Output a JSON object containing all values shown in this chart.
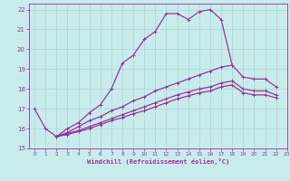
{
  "xlabel": "Windchill (Refroidissement éolien,°C)",
  "xlim": [
    -0.5,
    23
  ],
  "ylim": [
    15,
    22.3
  ],
  "xticks": [
    0,
    1,
    2,
    3,
    4,
    5,
    6,
    7,
    8,
    9,
    10,
    11,
    12,
    13,
    14,
    15,
    16,
    17,
    18,
    19,
    20,
    21,
    22,
    23
  ],
  "yticks": [
    15,
    16,
    17,
    18,
    19,
    20,
    21,
    22
  ],
  "bg_color": "#c8ecec",
  "grid_color": "#b0d8d8",
  "line_color": "#993399",
  "line1_y": [
    17.0,
    16.0,
    15.6,
    16.0,
    16.3,
    16.8,
    17.2,
    18.0,
    19.3,
    19.7,
    20.5,
    20.9,
    21.8,
    21.8,
    21.5,
    21.9,
    22.0,
    21.5,
    19.2,
    null,
    null,
    null,
    null,
    null
  ],
  "line2_y": [
    null,
    null,
    15.6,
    15.8,
    16.1,
    16.4,
    16.6,
    16.9,
    17.1,
    17.4,
    17.6,
    17.9,
    18.1,
    18.3,
    18.5,
    18.7,
    18.9,
    19.1,
    19.2,
    18.6,
    18.5,
    18.5,
    18.1,
    null
  ],
  "line3_y": [
    null,
    null,
    15.6,
    15.75,
    15.9,
    16.1,
    16.3,
    16.5,
    16.7,
    16.9,
    17.1,
    17.3,
    17.5,
    17.7,
    17.85,
    18.0,
    18.1,
    18.3,
    18.4,
    18.0,
    17.9,
    17.9,
    17.7,
    null
  ],
  "line4_y": [
    null,
    null,
    15.6,
    15.7,
    15.85,
    16.0,
    16.2,
    16.4,
    16.55,
    16.75,
    16.9,
    17.1,
    17.3,
    17.5,
    17.65,
    17.8,
    17.9,
    18.1,
    18.2,
    17.8,
    17.7,
    17.7,
    17.55,
    null
  ]
}
